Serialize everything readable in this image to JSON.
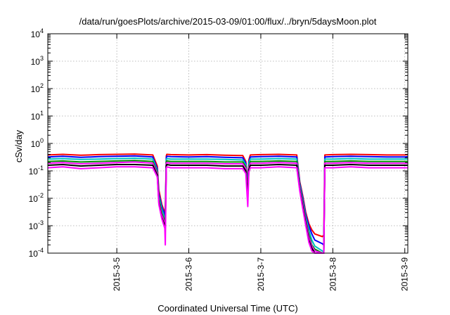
{
  "chart_data": {
    "type": "line",
    "title": "/data/run/goesPlots/archive/2015-03-09/01:00/flux/../bryn/5daysMoon.plot",
    "xlabel": "Coordinated Universal Time (UTC)",
    "ylabel": "cSv/day",
    "y_scale": "log",
    "ylim": [
      0.0001,
      10000
    ],
    "xlim": [
      "2015-03-04T01:00",
      "2015-03-09T01:00"
    ],
    "grid": true,
    "x_ticks": [
      {
        "label": "2015-3-5",
        "at": "2015-03-05T00:00"
      },
      {
        "label": "2015-3-6",
        "at": "2015-03-06T00:00"
      },
      {
        "label": "2015-3-7",
        "at": "2015-03-07T00:00"
      },
      {
        "label": "2015-3-8",
        "at": "2015-03-08T00:00"
      },
      {
        "label": "2015-3-9",
        "at": "2015-03-09T00:00"
      }
    ],
    "y_ticks": [
      {
        "base": "10",
        "exp": "-4",
        "value": 0.0001
      },
      {
        "base": "10",
        "exp": "-3",
        "value": 0.001
      },
      {
        "base": "10",
        "exp": "-2",
        "value": 0.01
      },
      {
        "base": "10",
        "exp": "-1",
        "value": 0.1
      },
      {
        "base": "10",
        "exp": "0",
        "value": 1
      },
      {
        "base": "10",
        "exp": "1",
        "value": 10
      },
      {
        "base": "10",
        "exp": "2",
        "value": 100
      },
      {
        "base": "10",
        "exp": "3",
        "value": 1000
      },
      {
        "base": "10",
        "exp": "4",
        "value": 10000
      }
    ],
    "x": [
      "2015-03-04T01:00",
      "2015-03-04T06:00",
      "2015-03-04T12:00",
      "2015-03-04T18:00",
      "2015-03-05T00:00",
      "2015-03-05T06:00",
      "2015-03-05T12:00",
      "2015-03-05T13:30",
      "2015-03-05T14:00",
      "2015-03-05T15:00",
      "2015-03-05T16:00",
      "2015-03-05T16:10",
      "2015-03-05T16:30",
      "2015-03-05T16:40",
      "2015-03-05T18:00",
      "2015-03-06T00:00",
      "2015-03-06T06:00",
      "2015-03-06T12:00",
      "2015-03-06T18:00",
      "2015-03-06T19:00",
      "2015-03-06T19:40",
      "2015-03-06T20:00",
      "2015-03-06T20:30",
      "2015-03-07T00:00",
      "2015-03-07T06:00",
      "2015-03-07T12:00",
      "2015-03-07T13:00",
      "2015-03-07T14:00",
      "2015-03-07T15:00",
      "2015-03-07T16:00",
      "2015-03-07T17:00",
      "2015-03-07T18:00",
      "2015-03-07T20:30",
      "2015-03-07T21:00",
      "2015-03-07T21:20",
      "2015-03-08T00:00",
      "2015-03-08T06:00",
      "2015-03-08T12:00",
      "2015-03-08T18:00",
      "2015-03-09T00:00",
      "2015-03-09T01:00"
    ],
    "series": [
      {
        "color": "#ff0000",
        "values": [
          0.38,
          0.4,
          0.37,
          0.39,
          0.4,
          0.41,
          0.38,
          0.15,
          0.02,
          0.006,
          0.003,
          0.0025,
          0.35,
          0.4,
          0.39,
          0.38,
          0.39,
          0.37,
          0.36,
          0.22,
          0.03,
          0.25,
          0.38,
          0.39,
          0.4,
          0.38,
          0.04,
          0.012,
          0.003,
          0.0012,
          0.0007,
          0.0005,
          0.0004,
          0.00045,
          0.38,
          0.39,
          0.4,
          0.39,
          0.38,
          0.38,
          0.39
        ]
      },
      {
        "color": "#0000ff",
        "values": [
          0.32,
          0.34,
          0.31,
          0.33,
          0.34,
          0.35,
          0.32,
          0.12,
          0.015,
          0.005,
          0.0025,
          0.002,
          0.3,
          0.34,
          0.33,
          0.32,
          0.33,
          0.31,
          0.3,
          0.19,
          0.025,
          0.21,
          0.32,
          0.33,
          0.34,
          0.32,
          0.035,
          0.01,
          0.0025,
          0.001,
          0.0005,
          0.0003,
          0.00022,
          0.0002,
          0.32,
          0.33,
          0.34,
          0.33,
          0.32,
          0.32,
          0.33
        ]
      },
      {
        "color": "#00c0c0",
        "values": [
          0.27,
          0.28,
          0.26,
          0.27,
          0.28,
          0.29,
          0.27,
          0.1,
          0.012,
          0.004,
          0.0018,
          0.0015,
          0.25,
          0.28,
          0.27,
          0.27,
          0.27,
          0.26,
          0.25,
          0.16,
          0.02,
          0.18,
          0.27,
          0.27,
          0.28,
          0.27,
          0.03,
          0.008,
          0.002,
          0.0007,
          0.0003,
          0.00018,
          0.00012,
          0.00011,
          0.27,
          0.27,
          0.28,
          0.27,
          0.27,
          0.27,
          0.27
        ]
      },
      {
        "color": "#009000",
        "values": [
          0.22,
          0.23,
          0.21,
          0.22,
          0.23,
          0.24,
          0.22,
          0.09,
          0.01,
          0.003,
          0.0014,
          0.0012,
          0.21,
          0.23,
          0.22,
          0.22,
          0.22,
          0.21,
          0.21,
          0.14,
          0.018,
          0.15,
          0.22,
          0.22,
          0.23,
          0.22,
          0.025,
          0.007,
          0.0016,
          0.0005,
          0.0002,
          0.00014,
          0.0001,
          0.0001,
          0.22,
          0.22,
          0.23,
          0.22,
          0.22,
          0.22,
          0.22
        ]
      },
      {
        "color": "#ff00ff",
        "values": [
          0.19,
          0.2,
          0.18,
          0.19,
          0.2,
          0.21,
          0.19,
          0.08,
          0.008,
          0.0025,
          0.0012,
          0.001,
          0.18,
          0.2,
          0.19,
          0.19,
          0.19,
          0.18,
          0.18,
          0.12,
          0.015,
          0.13,
          0.19,
          0.19,
          0.2,
          0.19,
          0.022,
          0.006,
          0.0014,
          0.0004,
          0.00018,
          0.00012,
          0.0001,
          0.0001,
          0.19,
          0.19,
          0.2,
          0.19,
          0.19,
          0.19,
          0.19
        ]
      },
      {
        "color": "#000000",
        "values": [
          0.16,
          0.17,
          0.15,
          0.16,
          0.17,
          0.17,
          0.16,
          0.07,
          0.007,
          0.002,
          0.001,
          0.0008,
          0.15,
          0.17,
          0.16,
          0.16,
          0.16,
          0.15,
          0.15,
          0.1,
          0.012,
          0.11,
          0.16,
          0.16,
          0.17,
          0.16,
          0.02,
          0.005,
          0.0012,
          0.0003,
          0.00015,
          0.0001,
          0.0001,
          0.0001,
          0.16,
          0.16,
          0.17,
          0.16,
          0.16,
          0.16,
          0.16
        ]
      },
      {
        "color": "#ff00ff",
        "values": [
          0.13,
          0.14,
          0.12,
          0.13,
          0.14,
          0.14,
          0.13,
          0.06,
          0.006,
          0.0018,
          0.0008,
          0.0002,
          0.12,
          0.14,
          0.13,
          0.13,
          0.13,
          0.12,
          0.12,
          0.08,
          0.005,
          0.09,
          0.13,
          0.13,
          0.14,
          0.13,
          0.018,
          0.004,
          0.001,
          0.00025,
          0.00012,
          0.0001,
          0.0001,
          0.0001,
          0.13,
          0.13,
          0.14,
          0.13,
          0.13,
          0.13,
          0.13
        ]
      }
    ]
  }
}
